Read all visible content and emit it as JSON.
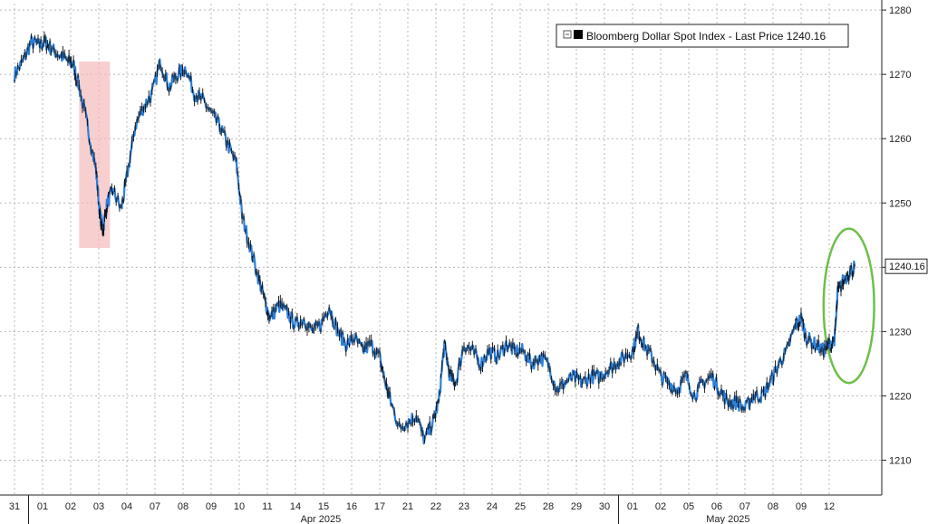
{
  "chart_data": {
    "type": "line",
    "legend": {
      "label": "Bloomberg Dollar Spot Index - Last Price",
      "value": "1240.16",
      "placement": "top-right"
    },
    "last_price_label": "1240.16",
    "last_price": 1240.16,
    "y_ticks": [
      1210,
      1220,
      1230,
      1240,
      1250,
      1260,
      1270,
      1280
    ],
    "ylim": [
      1205,
      1281
    ],
    "grid": true,
    "x_tick_labels": [
      "31",
      "01",
      "02",
      "03",
      "04",
      "07",
      "08",
      "09",
      "10",
      "11",
      "14",
      "15",
      "16",
      "17",
      "21",
      "22",
      "23",
      "24",
      "25",
      "28",
      "29",
      "30",
      "01",
      "02",
      "05",
      "06",
      "07",
      "08",
      "09",
      "12"
    ],
    "month_labels": [
      "Apr 2025",
      "May 2025"
    ],
    "series": [
      {
        "values": [
          [
            0,
            1270
          ],
          [
            0.3,
            1272
          ],
          [
            0.6,
            1275
          ],
          [
            0.9,
            1274.5
          ],
          [
            1.1,
            1275
          ],
          [
            1.3,
            1274
          ],
          [
            1.6,
            1273
          ],
          [
            1.9,
            1272
          ],
          [
            2.1,
            1271.5
          ],
          [
            2.3,
            1268
          ],
          [
            2.6,
            1262
          ],
          [
            2.9,
            1255
          ],
          [
            3.05,
            1248
          ],
          [
            3.15,
            1246
          ],
          [
            3.3,
            1250
          ],
          [
            3.5,
            1252
          ],
          [
            3.8,
            1249
          ],
          [
            4.0,
            1254
          ],
          [
            4.3,
            1262
          ],
          [
            4.6,
            1265
          ],
          [
            4.9,
            1267
          ],
          [
            5.2,
            1272
          ],
          [
            5.5,
            1268
          ],
          [
            5.8,
            1270
          ],
          [
            6.1,
            1271
          ],
          [
            6.4,
            1267
          ],
          [
            6.7,
            1266
          ],
          [
            7.0,
            1264
          ],
          [
            7.3,
            1262
          ],
          [
            7.6,
            1259
          ],
          [
            7.9,
            1256
          ],
          [
            8.1,
            1248
          ],
          [
            8.4,
            1243
          ],
          [
            8.7,
            1238
          ],
          [
            8.9,
            1235
          ],
          [
            9.1,
            1232
          ],
          [
            9.4,
            1234
          ],
          [
            9.7,
            1233
          ],
          [
            10.0,
            1231
          ],
          [
            10.3,
            1232
          ],
          [
            10.6,
            1230
          ],
          [
            10.9,
            1231
          ],
          [
            11.2,
            1234
          ],
          [
            11.5,
            1230
          ],
          [
            11.8,
            1228
          ],
          [
            12.1,
            1229
          ],
          [
            12.4,
            1227
          ],
          [
            12.7,
            1228
          ],
          [
            13.0,
            1226
          ],
          [
            13.2,
            1222
          ],
          [
            13.4,
            1219
          ],
          [
            13.7,
            1215
          ],
          [
            14.0,
            1216
          ],
          [
            14.3,
            1217
          ],
          [
            14.6,
            1213
          ],
          [
            14.9,
            1216
          ],
          [
            15.1,
            1219
          ],
          [
            15.3,
            1228
          ],
          [
            15.5,
            1223
          ],
          [
            15.7,
            1222
          ],
          [
            16.0,
            1228
          ],
          [
            16.3,
            1227
          ],
          [
            16.6,
            1225
          ],
          [
            16.9,
            1227
          ],
          [
            17.2,
            1226
          ],
          [
            17.5,
            1228
          ],
          [
            17.8,
            1227
          ],
          [
            18.1,
            1227
          ],
          [
            18.4,
            1225
          ],
          [
            18.7,
            1226
          ],
          [
            19.0,
            1225
          ],
          [
            19.3,
            1221
          ],
          [
            19.6,
            1222
          ],
          [
            19.9,
            1223
          ],
          [
            20.2,
            1222
          ],
          [
            20.5,
            1223
          ],
          [
            20.8,
            1223
          ],
          [
            21.1,
            1224
          ],
          [
            21.4,
            1225
          ],
          [
            21.7,
            1226
          ],
          [
            22.0,
            1227
          ],
          [
            22.2,
            1230
          ],
          [
            22.4,
            1228
          ],
          [
            22.7,
            1226
          ],
          [
            23.0,
            1223
          ],
          [
            23.3,
            1222
          ],
          [
            23.6,
            1221
          ],
          [
            23.9,
            1223
          ],
          [
            24.2,
            1220
          ],
          [
            24.5,
            1222
          ],
          [
            24.8,
            1223
          ],
          [
            25.1,
            1221
          ],
          [
            25.4,
            1219
          ],
          [
            25.7,
            1219
          ],
          [
            26.0,
            1218
          ],
          [
            26.3,
            1220
          ],
          [
            26.6,
            1220
          ],
          [
            26.9,
            1222
          ],
          [
            27.2,
            1225
          ],
          [
            27.5,
            1227
          ],
          [
            27.8,
            1231
          ],
          [
            28.0,
            1232
          ],
          [
            28.2,
            1229
          ],
          [
            28.5,
            1228
          ],
          [
            28.8,
            1227
          ],
          [
            29.0,
            1228
          ],
          [
            29.2,
            1229
          ],
          [
            29.3,
            1236
          ],
          [
            29.5,
            1238
          ],
          [
            29.7,
            1239
          ],
          [
            29.9,
            1240.16
          ]
        ]
      }
    ],
    "annotations": [
      {
        "shape": "rectangle",
        "color": "#f5b5b5",
        "x_range": [
          2.3,
          3.4
        ],
        "y_range": [
          1243,
          1272
        ]
      },
      {
        "shape": "ellipse",
        "color": "#6cc04a",
        "x_range": [
          28.8,
          30.6
        ],
        "y_range": [
          1222,
          1246
        ]
      }
    ]
  },
  "colors": {
    "background": "#ffffff",
    "grid": "#b9b9b9",
    "series_light": "#2f7fd6",
    "series_dark": "#0a0a0a",
    "rect": "#f5b5b5",
    "ellipse": "#6cc04a"
  }
}
